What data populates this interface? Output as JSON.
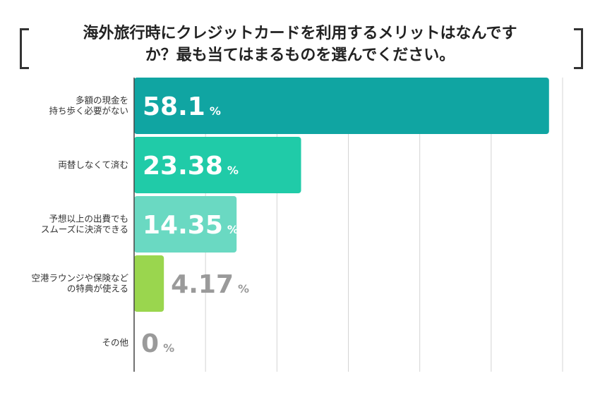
{
  "chart_data": {
    "type": "bar",
    "orientation": "horizontal",
    "title": "海外旅行時にクレジットカードを利用するメリットはなんですか？最も当てはまるものを選んでください。",
    "title_lines": [
      "海外旅行時にクレジットカードを利用するメリットはなんです",
      "か？最も当てはまるものを選んでください。"
    ],
    "categories": [
      [
        "多額の現金を",
        "持ち歩く必要がない"
      ],
      [
        "両替しなくて済む"
      ],
      [
        "予想以上の出費でも",
        "スムーズに決済できる"
      ],
      [
        "空港ラウンジや保険など",
        "の特典が使える"
      ],
      [
        "その他"
      ]
    ],
    "values": [
      58.1,
      23.38,
      14.35,
      4.17,
      0
    ],
    "value_labels": [
      "58.1",
      "23.38",
      "14.35",
      "4.17",
      "0"
    ],
    "unit": "%",
    "xlim": [
      0,
      60
    ],
    "grid": true,
    "bar_colors": [
      "#10a5a2",
      "#20cba8",
      "#6ad9c2",
      "#9ad64e",
      "#9ad64e"
    ]
  }
}
